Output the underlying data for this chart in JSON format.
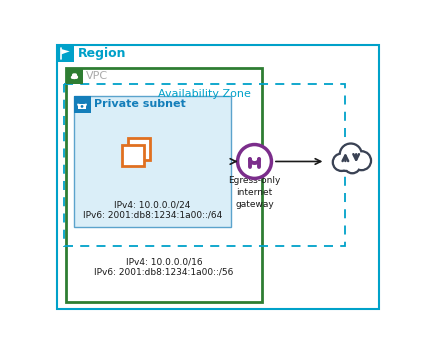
{
  "region_label": "Region",
  "vpc_label": "VPC",
  "az_label": "Availability Zone",
  "subnet_label": "Private subnet",
  "ipv4_subnet": "IPv4: 10.0.0.0/24",
  "ipv6_subnet": "IPv6: 2001:db8:1234:1a00::/64",
  "ipv4_vpc": "IPv4: 10.0.0.0/16",
  "ipv6_vpc": "IPv6: 2001:db8:1234:1a00::/56",
  "egress_label": "Egress-only\ninternet\ngateway",
  "region_border_color": "#00A1C9",
  "vpc_border_color": "#2E7D32",
  "az_border_color": "#00A1C9",
  "subnet_fill_color": "#DAEEF8",
  "subnet_border_color": "#5BA3CC",
  "ec2_color": "#E07020",
  "gateway_circle_color": "#7B2D8B",
  "cloud_color": "#3A4254",
  "arrow_color": "#1A1A1A",
  "text_color_region": "#00A1C9",
  "text_color_vpc": "#AAAAAA",
  "text_color_az": "#00A1C9",
  "text_color_subnet": "#147EBA",
  "text_color_body": "#1A1A1A",
  "background_color": "#FFFFFF",
  "region_icon_color": "#00A1C9",
  "vpc_icon_color": "#2E7D32",
  "subnet_icon_color": "#147EBA"
}
